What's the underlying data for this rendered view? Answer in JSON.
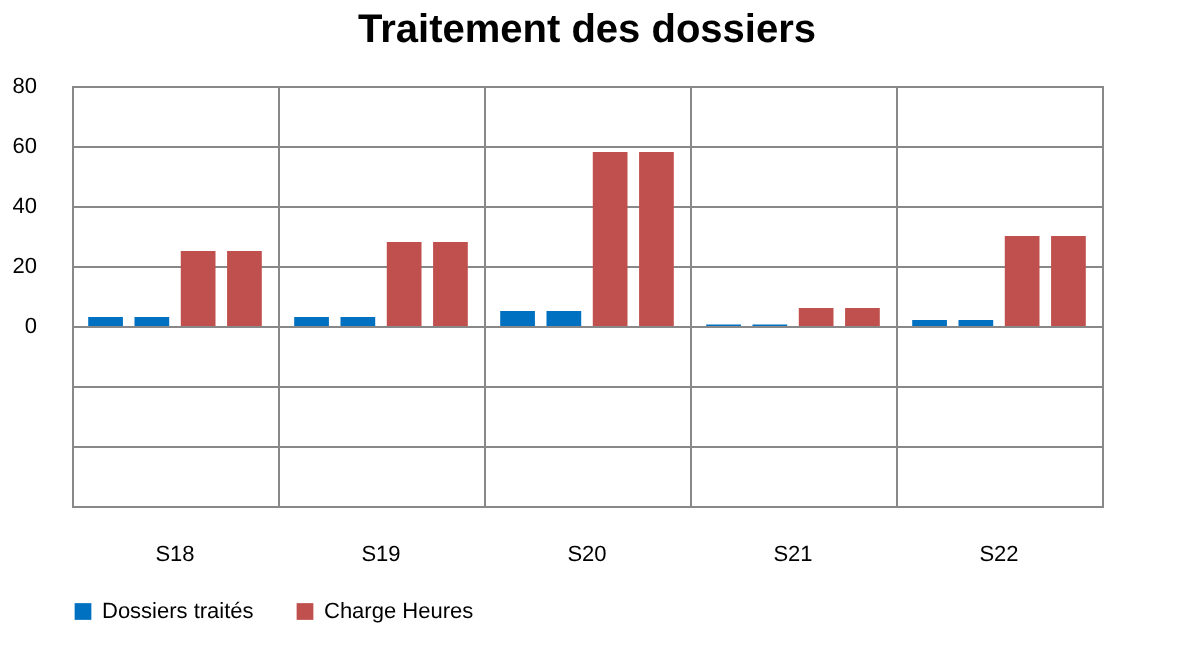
{
  "chart_data": {
    "type": "bar",
    "title": "Traitement des dossiers",
    "categories": [
      "S18",
      "S19",
      "S20",
      "S21",
      "S22"
    ],
    "series": [
      {
        "name": "Dossiers traités",
        "color": "#0070c0",
        "values": [
          3,
          3,
          5,
          0.5,
          2
        ]
      },
      {
        "color": "#0070c0",
        "values": [
          3,
          3,
          5,
          0.5,
          2
        ]
      },
      {
        "name": "Charge Heures",
        "color": "#c0504d",
        "values": [
          25,
          28,
          58,
          6,
          30
        ]
      },
      {
        "color": "#c0504d",
        "values": [
          25,
          28,
          58,
          6,
          30
        ]
      }
    ],
    "ylim": [
      -60,
      80
    ],
    "yticks": [
      {
        "value": -60,
        "label": null
      },
      {
        "value": -40,
        "label": null
      },
      {
        "value": -20,
        "label": null
      },
      0,
      20,
      40,
      60,
      80
    ],
    "grid": true,
    "legend": "bottom"
  }
}
